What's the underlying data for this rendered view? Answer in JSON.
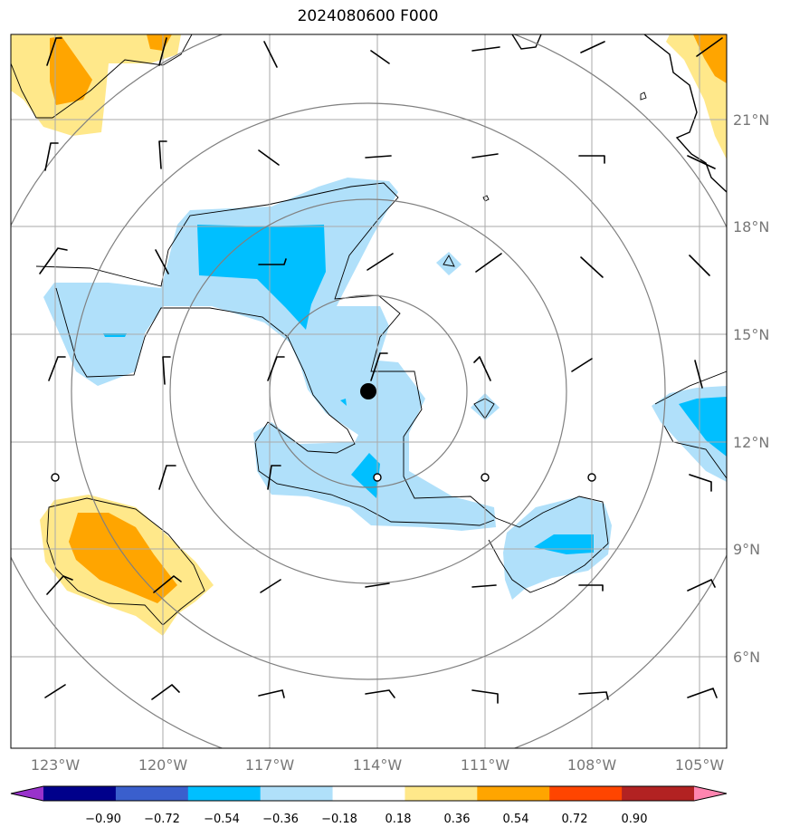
{
  "title": "2024080600 F000",
  "longitudes": [
    "123°W",
    "120°W",
    "117°W",
    "114°W",
    "111°W",
    "108°W",
    "105°W"
  ],
  "latitudes": [
    "21°N",
    "18°N",
    "15°N",
    "12°N",
    "9°N",
    "6°N"
  ],
  "colorbar": {
    "labels": [
      "−0.90",
      "−0.72",
      "−0.54",
      "−0.36",
      "−0.18",
      "0.18",
      "0.36",
      "0.54",
      "0.72",
      "0.90"
    ],
    "colors": [
      "#9932cc",
      "#00008b",
      "#3a5fcd",
      "#00bfff",
      "#b0e0fa",
      "#ffffff",
      "#ffe88a",
      "#ffa500",
      "#ff4500",
      "#b22222",
      "#ff85b0"
    ]
  },
  "fill_colors": {
    "light_blue": "#b0e0fa",
    "blue": "#00bfff",
    "light_yellow": "#ffe88a",
    "orange": "#ffa500"
  },
  "storm_center": {
    "lon": "114.2°W",
    "lat": "13.4°N"
  }
}
